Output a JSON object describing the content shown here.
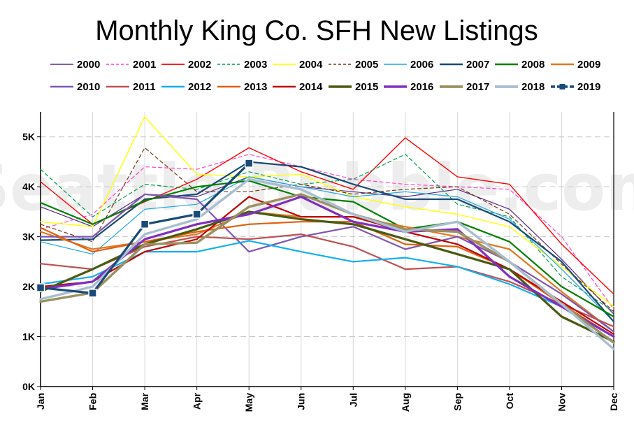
{
  "chart_data": {
    "type": "line",
    "title": "Monthly King Co. SFH New Listings",
    "watermark": "Seattle Bubble.com",
    "xlabel": "",
    "ylabel": "",
    "ylim": [
      0,
      5500
    ],
    "y_ticks": [
      0,
      1000,
      2000,
      3000,
      4000,
      5000
    ],
    "y_tick_labels": [
      "0K",
      "1K",
      "2K",
      "3K",
      "4K",
      "5K"
    ],
    "categories": [
      "Jan",
      "Feb",
      "Mar",
      "Apr",
      "May",
      "Jun",
      "Jul",
      "Aug",
      "Sep",
      "Oct",
      "Nov",
      "Dec"
    ],
    "grid": "horizontal dashed, vertical solid",
    "legend_position": "top",
    "series": [
      {
        "name": "2000",
        "color": "#5b2a86",
        "style": "solid",
        "width": 1.2,
        "values": [
          3600,
          3200,
          3850,
          3800,
          4200,
          4000,
          3900,
          3800,
          3950,
          3550,
          2550,
          1450
        ]
      },
      {
        "name": "2001",
        "color": "#ff44cc",
        "style": "dashed",
        "width": 1.2,
        "values": [
          3150,
          3450,
          4400,
          4350,
          4650,
          4400,
          4150,
          4050,
          4000,
          3950,
          3000,
          1550
        ]
      },
      {
        "name": "2002",
        "color": "#ff0000",
        "style": "solid",
        "width": 1.4,
        "values": [
          4100,
          3250,
          3700,
          4150,
          4780,
          4300,
          3950,
          4980,
          4200,
          4050,
          2850,
          1850
        ]
      },
      {
        "name": "2003",
        "color": "#00a050",
        "style": "dashed",
        "width": 1.2,
        "values": [
          4350,
          3400,
          4050,
          3950,
          4300,
          4050,
          4150,
          4650,
          3650,
          3400,
          2200,
          1500
        ]
      },
      {
        "name": "2004",
        "color": "#ffff00",
        "style": "solid",
        "width": 1.4,
        "values": [
          3300,
          3200,
          5400,
          4250,
          4200,
          4250,
          3800,
          3600,
          3450,
          3200,
          2400,
          1600
        ]
      },
      {
        "name": "2005",
        "color": "#6b3a10",
        "style": "dashed",
        "width": 1.2,
        "values": [
          3250,
          2900,
          4780,
          3900,
          3900,
          4050,
          3850,
          3950,
          4000,
          3450,
          2450,
          1500
        ]
      },
      {
        "name": "2006",
        "color": "#1ea8e0",
        "style": "solid",
        "width": 1.2,
        "values": [
          2900,
          2650,
          3550,
          3650,
          4200,
          4000,
          3800,
          3900,
          3800,
          3350,
          2350,
          1300
        ]
      },
      {
        "name": "2007",
        "color": "#1a4a78",
        "style": "solid",
        "width": 2.2,
        "values": [
          2930,
          2950,
          3750,
          3850,
          4500,
          4400,
          4050,
          3750,
          3750,
          3300,
          2500,
          1300
        ]
      },
      {
        "name": "2008",
        "color": "#008000",
        "style": "solid",
        "width": 2.2,
        "values": [
          3680,
          3250,
          3720,
          4000,
          4120,
          3800,
          3700,
          3150,
          3300,
          2900,
          2000,
          1400
        ]
      },
      {
        "name": "2009",
        "color": "#e07820",
        "style": "solid",
        "width": 2.2,
        "values": [
          3100,
          2750,
          2900,
          3050,
          3500,
          3400,
          3400,
          3200,
          3000,
          2750,
          1900,
          1100
        ]
      },
      {
        "name": "2010",
        "color": "#8055b0",
        "style": "solid",
        "width": 2.2,
        "values": [
          3000,
          3000,
          3850,
          3750,
          2700,
          3000,
          3200,
          2750,
          3000,
          2500,
          1850,
          1100
        ]
      },
      {
        "name": "2011",
        "color": "#c05050",
        "style": "solid",
        "width": 2.2,
        "values": [
          2460,
          2350,
          2800,
          3000,
          2950,
          3050,
          2800,
          2350,
          2400,
          2100,
          1650,
          1200
        ]
      },
      {
        "name": "2012",
        "color": "#10b0f0",
        "style": "solid",
        "width": 2.2,
        "values": [
          2050,
          2200,
          2700,
          2700,
          2920,
          2700,
          2500,
          2580,
          2400,
          2050,
          1600,
          900
        ]
      },
      {
        "name": "2013",
        "color": "#e06010",
        "style": "solid",
        "width": 2.2,
        "values": [
          3180,
          2700,
          2900,
          3100,
          3250,
          3300,
          3300,
          2850,
          2800,
          2350,
          1650,
          1000
        ]
      },
      {
        "name": "2014",
        "color": "#c00000",
        "style": "solid",
        "width": 2.2,
        "values": [
          2000,
          2100,
          2700,
          2950,
          3800,
          3400,
          3400,
          3100,
          2850,
          2350,
          1700,
          1050
        ]
      },
      {
        "name": "2015",
        "color": "#4a5a10",
        "style": "solid",
        "width": 3.2,
        "values": [
          1900,
          2350,
          2850,
          3150,
          3500,
          3350,
          3250,
          2950,
          2650,
          2350,
          1400,
          900
        ]
      },
      {
        "name": "2016",
        "color": "#8030c0",
        "style": "solid",
        "width": 3.2,
        "values": [
          1950,
          2100,
          2950,
          3250,
          3450,
          3800,
          3300,
          3100,
          3150,
          2200,
          1600,
          1000
        ]
      },
      {
        "name": "2017",
        "color": "#9c9060",
        "style": "solid",
        "width": 3.4,
        "values": [
          1700,
          1880,
          2850,
          2880,
          3600,
          3850,
          3450,
          3150,
          3100,
          2500,
          1650,
          880
        ]
      },
      {
        "name": "2018",
        "color": "#a8bed0",
        "style": "solid",
        "width": 3.4,
        "values": [
          1750,
          2000,
          3050,
          3350,
          4150,
          3950,
          3450,
          3100,
          3300,
          2500,
          1650,
          750
        ]
      },
      {
        "name": "2019",
        "color": "#1a4a78",
        "style": "dash-marker",
        "width": 3.2,
        "values": [
          1980,
          1870,
          3250,
          3450,
          4470,
          null,
          null,
          null,
          null,
          null,
          null,
          null
        ]
      }
    ]
  }
}
